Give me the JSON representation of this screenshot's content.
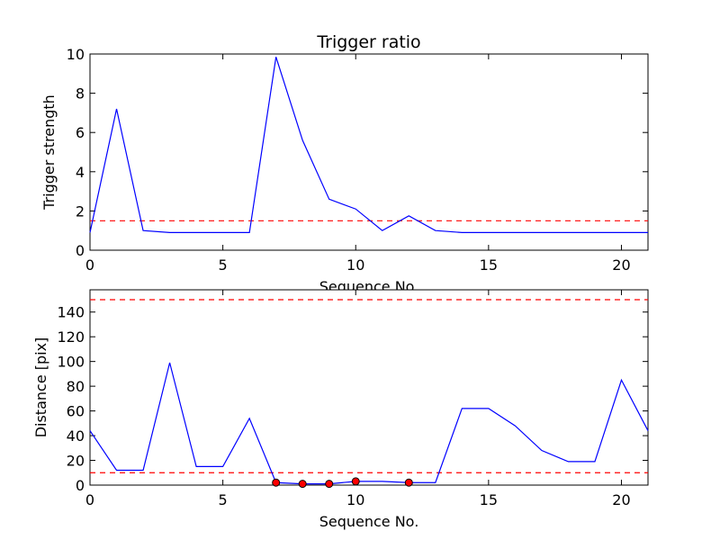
{
  "chart_data": [
    {
      "type": "line",
      "title": "Trigger ratio",
      "xlabel": "Sequence No.",
      "ylabel": "Trigger strength",
      "xlim": [
        0,
        21
      ],
      "ylim": [
        0,
        10
      ],
      "xticks": [
        0,
        5,
        10,
        15,
        20
      ],
      "yticks": [
        0,
        2,
        4,
        6,
        8,
        10
      ],
      "grid": false,
      "series": [
        {
          "color": "#0000ff",
          "x": [
            0,
            1,
            2,
            3,
            4,
            5,
            6,
            7,
            8,
            9,
            10,
            11,
            12,
            13,
            14,
            15,
            16,
            17,
            18,
            19,
            20,
            21
          ],
          "y": [
            0.9,
            7.2,
            1.0,
            0.9,
            0.9,
            0.9,
            0.9,
            9.85,
            5.6,
            2.6,
            2.1,
            1.0,
            1.75,
            1.0,
            0.9,
            0.9,
            0.9,
            0.9,
            0.9,
            0.9,
            0.9,
            0.9
          ]
        }
      ],
      "thresholds": [
        {
          "y": 1.5,
          "color": "#ff0000",
          "style": "dashed"
        }
      ]
    },
    {
      "type": "line",
      "title": "",
      "xlabel": "Sequence No.",
      "ylabel": "Distance [pix]",
      "xlim": [
        0,
        21
      ],
      "ylim": [
        0,
        158
      ],
      "xticks": [
        0,
        5,
        10,
        15,
        20
      ],
      "yticks": [
        0,
        20,
        40,
        60,
        80,
        100,
        120,
        140
      ],
      "grid": false,
      "series": [
        {
          "color": "#0000ff",
          "x": [
            0,
            1,
            2,
            3,
            4,
            5,
            6,
            7,
            8,
            9,
            10,
            11,
            12,
            13,
            14,
            15,
            16,
            17,
            18,
            19,
            20,
            21
          ],
          "y": [
            44,
            12,
            12,
            99,
            15,
            15,
            54,
            2,
            1,
            1,
            3,
            3,
            2,
            2,
            62,
            62,
            48,
            28,
            19,
            19,
            85,
            44
          ]
        }
      ],
      "markers": {
        "color": "#ff0000",
        "x": [
          7,
          8,
          9,
          10,
          12
        ],
        "y": [
          2,
          1,
          1,
          3,
          2
        ]
      },
      "thresholds": [
        {
          "y": 150,
          "color": "#ff0000",
          "style": "dashed"
        },
        {
          "y": 10,
          "color": "#ff0000",
          "style": "dashed"
        }
      ]
    }
  ]
}
